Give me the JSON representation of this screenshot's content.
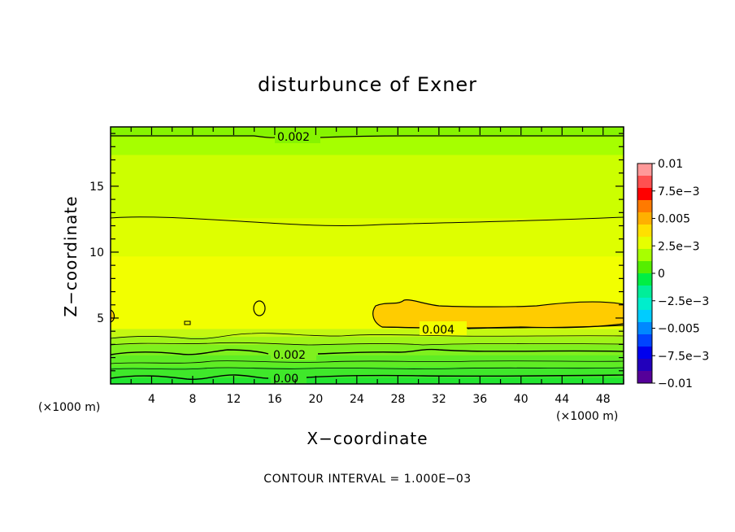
{
  "chart_data": {
    "type": "contour",
    "title": "disturbunce of Exner",
    "xlabel": "X−coordinate",
    "ylabel": "Z−coordinate",
    "x_unit": "(×1000 m)",
    "x_unit_left": "(×1000 m)",
    "xlim": [
      0,
      50
    ],
    "ylim": [
      0,
      19.5
    ],
    "xticks": [
      4,
      8,
      12,
      16,
      20,
      24,
      28,
      32,
      36,
      40,
      44,
      48
    ],
    "yticks": [
      5,
      10,
      15
    ],
    "contour_interval_text": "CONTOUR INTERVAL = 1.000E−03",
    "contour_labels": [
      {
        "text": "0.002",
        "x": 20,
        "y": 19
      },
      {
        "text": "0.004",
        "x": 32,
        "y": 4.5
      },
      {
        "text": "0.002",
        "x": 18,
        "y": 2.2
      },
      {
        "text": "0.00",
        "x": 18,
        "y": 0.4
      }
    ],
    "colorbar": {
      "labels": [
        "0.01",
        "7.5e−3",
        "0.005",
        "2.5e−3",
        "0",
        "−2.5e−3",
        "−0.005",
        "−7.5e−3",
        "−0.01"
      ],
      "colors": [
        "#ff9999",
        "#ff5050",
        "#ff0000",
        "#ff7a00",
        "#ffb000",
        "#ffe000",
        "#e6ff00",
        "#a8ff00",
        "#55ee00",
        "#00ee44",
        "#00ee99",
        "#00eecc",
        "#00ccff",
        "#0088ff",
        "#0044ff",
        "#0000ee",
        "#2200bb",
        "#550099"
      ]
    },
    "field_bands": [
      {
        "z_bottom": 0.0,
        "z_top": 0.5,
        "color": "#22e530"
      },
      {
        "z_bottom": 0.5,
        "z_top": 1.3,
        "color": "#3fe82a"
      },
      {
        "z_bottom": 1.3,
        "z_top": 2.2,
        "color": "#5fec24"
      },
      {
        "z_bottom": 2.2,
        "z_top": 3.0,
        "color": "#7ff01e"
      },
      {
        "z_bottom": 3.0,
        "z_top": 3.6,
        "color": "#a0f418"
      },
      {
        "z_bottom": 3.6,
        "z_top": 4.2,
        "color": "#c4f812"
      },
      {
        "z_bottom": 4.2,
        "z_top": 9.7,
        "color": "#f2ff00"
      },
      {
        "z_bottom": 9.7,
        "z_top": 12.6,
        "color": "#deff00"
      },
      {
        "z_bottom": 12.6,
        "z_top": 17.4,
        "color": "#ccff00"
      },
      {
        "z_bottom": 17.4,
        "z_top": 18.8,
        "color": "#a6ff00"
      },
      {
        "z_bottom": 18.8,
        "z_top": 19.5,
        "color": "#86f400"
      }
    ],
    "max_region_color": "#ffcc00"
  }
}
